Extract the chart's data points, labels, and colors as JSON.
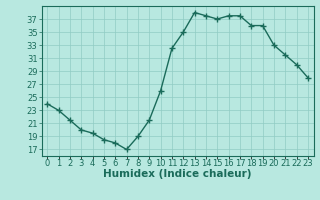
{
  "x": [
    0,
    1,
    2,
    3,
    4,
    5,
    6,
    7,
    8,
    9,
    10,
    11,
    12,
    13,
    14,
    15,
    16,
    17,
    18,
    19,
    20,
    21,
    22,
    23
  ],
  "y": [
    24,
    23,
    21.5,
    20,
    19.5,
    18.5,
    18,
    17,
    19,
    21.5,
    26,
    32.5,
    35,
    38,
    37.5,
    37,
    37.5,
    37.5,
    36,
    36,
    33,
    31.5,
    30,
    28
  ],
  "line_color": "#1a6b5a",
  "marker": "+",
  "marker_size": 4,
  "marker_lw": 1.0,
  "line_width": 1.0,
  "bg_color": "#b8e8e0",
  "grid_color": "#90ccc4",
  "xlabel": "Humidex (Indice chaleur)",
  "xlim": [
    -0.5,
    23.5
  ],
  "ylim": [
    16,
    39
  ],
  "yticks": [
    17,
    19,
    21,
    23,
    25,
    27,
    29,
    31,
    33,
    35,
    37
  ],
  "xticks": [
    0,
    1,
    2,
    3,
    4,
    5,
    6,
    7,
    8,
    9,
    10,
    11,
    12,
    13,
    14,
    15,
    16,
    17,
    18,
    19,
    20,
    21,
    22,
    23
  ],
  "xtick_labels": [
    "0",
    "1",
    "2",
    "3",
    "4",
    "5",
    "6",
    "7",
    "8",
    "9",
    "10",
    "11",
    "12",
    "13",
    "14",
    "15",
    "16",
    "17",
    "18",
    "19",
    "20",
    "21",
    "22",
    "23"
  ],
  "tick_color": "#1a6b5a",
  "font_size": 6,
  "xlabel_fontsize": 7.5
}
